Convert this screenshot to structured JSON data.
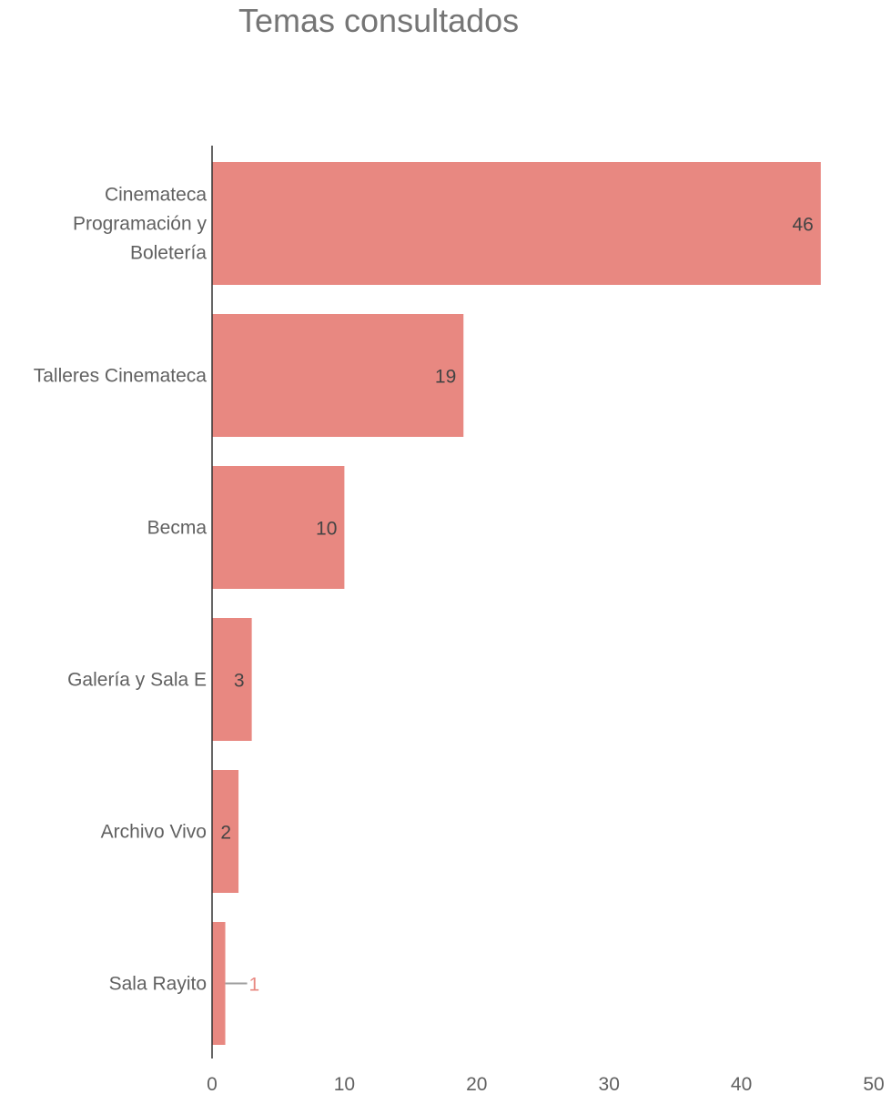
{
  "chart_data": {
    "type": "bar",
    "orientation": "horizontal",
    "title": "Temas consultados",
    "categories": [
      [
        "Cinemateca",
        "Programación y",
        "Boletería"
      ],
      [
        "Talleres Cinemateca"
      ],
      [
        "Becma"
      ],
      [
        "Galería y Sala E"
      ],
      [
        "Archivo Vivo"
      ],
      [
        "Sala Rayito"
      ]
    ],
    "values": [
      46,
      19,
      10,
      3,
      2,
      1
    ],
    "data_labels": [
      "46",
      "19",
      "10",
      "3",
      "2",
      "1"
    ],
    "xlim": [
      0,
      50
    ],
    "xticks": [
      "0",
      "10",
      "20",
      "30",
      "40",
      "50"
    ],
    "grid": false,
    "colors": {
      "bar": "#e88881",
      "axis": "#333333",
      "label_inside": "#444444",
      "label_outside": "#e88881",
      "leader": "#9e9e9e"
    }
  }
}
